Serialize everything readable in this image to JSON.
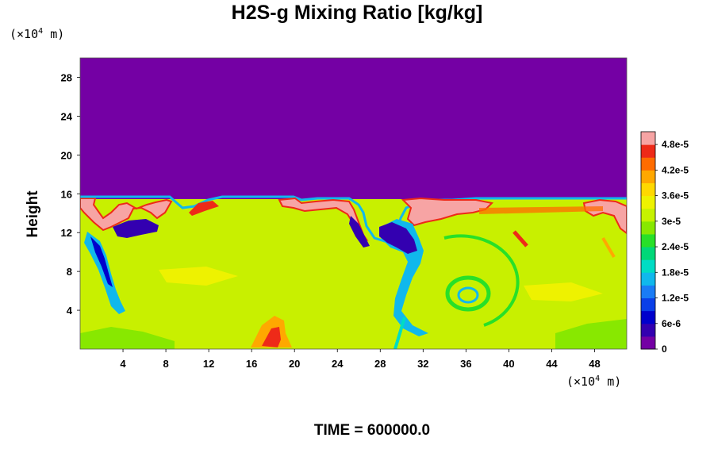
{
  "chart_data": {
    "type": "heatmap",
    "title": "H2S-g Mixing Ratio [kg/kg]",
    "ylabel": "Height",
    "xlabel": "",
    "x_unit_prefix": "(×10",
    "unit_exponent": "4",
    "unit_suffix": "m)",
    "xlim": [
      0,
      51
    ],
    "ylim": [
      0,
      30
    ],
    "x_ticks": [
      4,
      8,
      12,
      16,
      20,
      24,
      28,
      32,
      36,
      40,
      44,
      48
    ],
    "x_tick_labels": [
      "4",
      "8",
      "12",
      "16",
      "20",
      "24",
      "28",
      "32",
      "36",
      "40",
      "44",
      "48"
    ],
    "y_ticks": [
      4,
      8,
      12,
      16,
      20,
      24,
      28
    ],
    "y_tick_labels": [
      "4",
      "8",
      "12",
      "16",
      "20",
      "24",
      "28"
    ],
    "colorbar": {
      "min": 0,
      "max": 5.1e-05,
      "levels": 17,
      "colors": [
        "#7400a4",
        "#3300b0",
        "#0000cc",
        "#0a3fe8",
        "#1a7cf5",
        "#10b8ec",
        "#00dcc4",
        "#00d878",
        "#28e028",
        "#88e800",
        "#c6f200",
        "#eef200",
        "#ffd800",
        "#ffa800",
        "#ff6c00",
        "#ee2a18",
        "#f7a4a4"
      ],
      "ticks": [
        0,
        6e-06,
        1.2e-05,
        1.8e-05,
        2.4e-05,
        3e-05,
        3.6e-05,
        4.2e-05,
        4.8e-05
      ],
      "tick_labels": [
        "0",
        "6e-6",
        "1.2e-5",
        "1.8e-5",
        "2.4e-5",
        "3e-5",
        "3.6e-5",
        "4.2e-5",
        "4.8e-5"
      ]
    },
    "field_summary": {
      "upper_background_value": 0,
      "lower_background_value": 3.3e-05,
      "interface_height": 15.5
    },
    "time_label": "TIME = 600000.0"
  }
}
